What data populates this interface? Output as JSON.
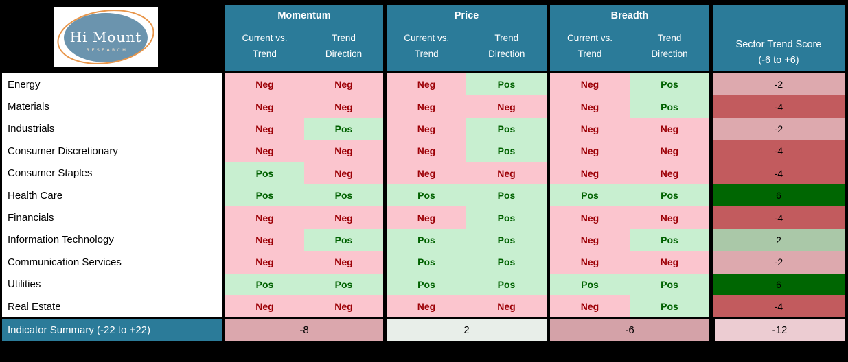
{
  "logo": {
    "title": "Hi Mount",
    "subtitle": "RESEARCH"
  },
  "header": {
    "groups": [
      {
        "label": "Momentum",
        "col1": "Current vs.\nTrend",
        "col2": "Trend\nDirection"
      },
      {
        "label": "Price",
        "col1": "Current vs.\nTrend",
        "col2": "Trend\nDirection"
      },
      {
        "label": "Breadth",
        "col1": "Current vs.\nTrend",
        "col2": "Trend\nDirection"
      }
    ],
    "score": "Sector Trend Score\n(-6 to +6)"
  },
  "table": {
    "rows": [
      {
        "sector": "Energy",
        "momentum": [
          "Neg",
          "Neg"
        ],
        "price": [
          "Neg",
          "Pos"
        ],
        "breadth": [
          "Neg",
          "Pos"
        ],
        "score": "-2",
        "score_bg": "#DDA9AE"
      },
      {
        "sector": "Materials",
        "momentum": [
          "Neg",
          "Neg"
        ],
        "price": [
          "Neg",
          "Neg"
        ],
        "breadth": [
          "Neg",
          "Pos"
        ],
        "score": "-4",
        "score_bg": "#C25B5E"
      },
      {
        "sector": "Industrials",
        "momentum": [
          "Neg",
          "Pos"
        ],
        "price": [
          "Neg",
          "Pos"
        ],
        "breadth": [
          "Neg",
          "Neg"
        ],
        "score": "-2",
        "score_bg": "#DDA9AE"
      },
      {
        "sector": "Consumer Discretionary",
        "momentum": [
          "Neg",
          "Neg"
        ],
        "price": [
          "Neg",
          "Pos"
        ],
        "breadth": [
          "Neg",
          "Neg"
        ],
        "score": "-4",
        "score_bg": "#C25B5E"
      },
      {
        "sector": "Consumer Staples",
        "momentum": [
          "Pos",
          "Neg"
        ],
        "price": [
          "Neg",
          "Neg"
        ],
        "breadth": [
          "Neg",
          "Neg"
        ],
        "score": "-4",
        "score_bg": "#C25B5E"
      },
      {
        "sector": "Health Care",
        "momentum": [
          "Pos",
          "Pos"
        ],
        "price": [
          "Pos",
          "Pos"
        ],
        "breadth": [
          "Pos",
          "Pos"
        ],
        "score": "6",
        "score_bg": "#006602"
      },
      {
        "sector": "Financials",
        "momentum": [
          "Neg",
          "Neg"
        ],
        "price": [
          "Neg",
          "Pos"
        ],
        "breadth": [
          "Neg",
          "Neg"
        ],
        "score": "-4",
        "score_bg": "#C25B5E"
      },
      {
        "sector": "Information Technology",
        "momentum": [
          "Neg",
          "Pos"
        ],
        "price": [
          "Pos",
          "Pos"
        ],
        "breadth": [
          "Neg",
          "Pos"
        ],
        "score": "2",
        "score_bg": "#AAC8A8"
      },
      {
        "sector": "Communication Services",
        "momentum": [
          "Neg",
          "Neg"
        ],
        "price": [
          "Pos",
          "Pos"
        ],
        "breadth": [
          "Neg",
          "Neg"
        ],
        "score": "-2",
        "score_bg": "#DDA9AE"
      },
      {
        "sector": "Utilities",
        "momentum": [
          "Pos",
          "Pos"
        ],
        "price": [
          "Pos",
          "Pos"
        ],
        "breadth": [
          "Pos",
          "Pos"
        ],
        "score": "6",
        "score_bg": "#006602"
      },
      {
        "sector": "Real Estate",
        "momentum": [
          "Neg",
          "Neg"
        ],
        "price": [
          "Neg",
          "Neg"
        ],
        "breadth": [
          "Neg",
          "Pos"
        ],
        "score": "-4",
        "score_bg": "#C25B5E"
      }
    ]
  },
  "summary": {
    "label": "Indicator Summary (-22 to +22)",
    "cells": [
      {
        "name": "momentum",
        "value": "-8",
        "bg": "#DBA7AD"
      },
      {
        "name": "price",
        "value": "2",
        "bg": "#E8EEE9"
      },
      {
        "name": "breadth",
        "value": "-6",
        "bg": "#D4A2A8"
      },
      {
        "name": "score",
        "value": "-12",
        "bg": "#ECCCD2"
      }
    ]
  },
  "colors": {
    "header_bg": "#2B7B99",
    "neg_bg": "#FBC5CE",
    "neg_text": "#9C0006",
    "pos_bg": "#C8EFD0",
    "pos_text": "#006100",
    "logo_blue": "#6B94AE",
    "logo_orange": "#E8964B"
  },
  "chart_data": {
    "type": "table",
    "columns": [
      "Sector",
      "Momentum Current vs. Trend",
      "Momentum Trend Direction",
      "Price Current vs. Trend",
      "Price Trend Direction",
      "Breadth Current vs. Trend",
      "Breadth Trend Direction",
      "Sector Trend Score (-6 to +6)"
    ],
    "rows": [
      [
        "Energy",
        "Neg",
        "Neg",
        "Neg",
        "Pos",
        "Neg",
        "Pos",
        -2
      ],
      [
        "Materials",
        "Neg",
        "Neg",
        "Neg",
        "Neg",
        "Neg",
        "Pos",
        -4
      ],
      [
        "Industrials",
        "Neg",
        "Pos",
        "Neg",
        "Pos",
        "Neg",
        "Neg",
        -2
      ],
      [
        "Consumer Discretionary",
        "Neg",
        "Neg",
        "Neg",
        "Pos",
        "Neg",
        "Neg",
        -4
      ],
      [
        "Consumer Staples",
        "Pos",
        "Neg",
        "Neg",
        "Neg",
        "Neg",
        "Neg",
        -4
      ],
      [
        "Health Care",
        "Pos",
        "Pos",
        "Pos",
        "Pos",
        "Pos",
        "Pos",
        6
      ],
      [
        "Financials",
        "Neg",
        "Neg",
        "Neg",
        "Pos",
        "Neg",
        "Neg",
        -4
      ],
      [
        "Information Technology",
        "Neg",
        "Pos",
        "Pos",
        "Pos",
        "Neg",
        "Pos",
        2
      ],
      [
        "Communication Services",
        "Neg",
        "Neg",
        "Pos",
        "Pos",
        "Neg",
        "Neg",
        -2
      ],
      [
        "Utilities",
        "Pos",
        "Pos",
        "Pos",
        "Pos",
        "Pos",
        "Pos",
        6
      ],
      [
        "Real Estate",
        "Neg",
        "Neg",
        "Neg",
        "Neg",
        "Neg",
        "Pos",
        -4
      ]
    ],
    "summary_row": [
      "Indicator Summary (-22 to +22)",
      -8,
      2,
      -6,
      -12
    ],
    "legend": "Neg = pink/red cell, Pos = green cell; score column colored red-to-green by value"
  }
}
